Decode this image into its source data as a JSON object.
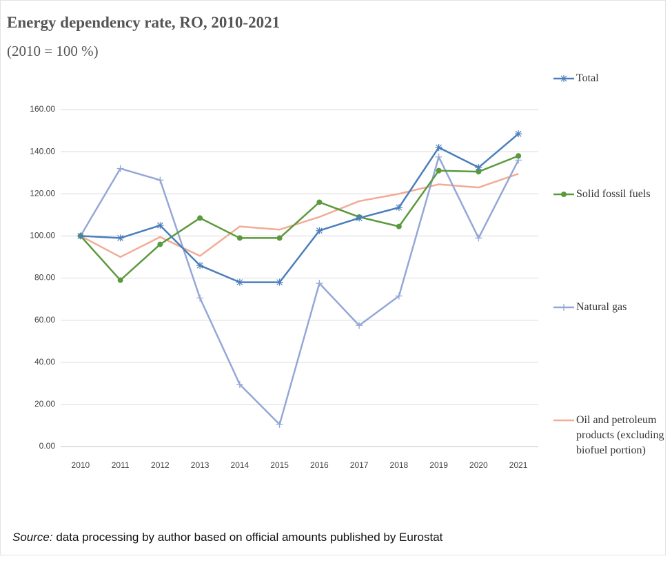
{
  "chart_data": {
    "type": "line",
    "title": "Energy dependency rate, RO, 2010-2021",
    "subtitle": "(2010 = 100 %)",
    "categories": [
      "2010",
      "2011",
      "2012",
      "2013",
      "2014",
      "2015",
      "2016",
      "2017",
      "2018",
      "2019",
      "2020",
      "2021"
    ],
    "series": [
      {
        "name": "Total",
        "color": "#4a7ebb",
        "marker": "star",
        "values": [
          100,
          99,
          105,
          86,
          78,
          78,
          102.5,
          108.5,
          113.5,
          142,
          132.5,
          148.5
        ]
      },
      {
        "name": "Solid fossil fuels",
        "color": "#5b9a3c",
        "marker": "circle",
        "values": [
          100,
          79,
          96,
          108.5,
          99,
          99,
          116,
          109,
          104.5,
          131,
          130.5,
          138
        ]
      },
      {
        "name": "Natural gas",
        "color": "#94a7d6",
        "marker": "plus",
        "values": [
          100,
          132,
          126.5,
          70.5,
          29.5,
          10.5,
          77.5,
          57.5,
          71.5,
          137.5,
          99,
          136
        ]
      },
      {
        "name": "Oil and petroleum products (excluding biofuel portion)",
        "color": "#f2ab94",
        "marker": "none",
        "values": [
          100,
          90,
          99.5,
          90.5,
          104.5,
          103,
          109,
          116.5,
          120,
          124.5,
          123,
          129.5
        ]
      }
    ],
    "ylim": [
      0,
      160
    ],
    "yticks": [
      {
        "value": 0,
        "label": "0.00"
      },
      {
        "value": 20,
        "label": "20.00"
      },
      {
        "value": 40,
        "label": "40.00"
      },
      {
        "value": 60,
        "label": "60.00"
      },
      {
        "value": 80,
        "label": "80.00"
      },
      {
        "value": 100,
        "label": "100.00"
      },
      {
        "value": 120,
        "label": "120.00"
      },
      {
        "value": 140,
        "label": "140.00"
      },
      {
        "value": 160,
        "label": "160.00"
      }
    ],
    "grid": true,
    "legend": "right",
    "source_label": "Source:",
    "source_text": "data processing by author based on official amounts published by Eurostat"
  }
}
